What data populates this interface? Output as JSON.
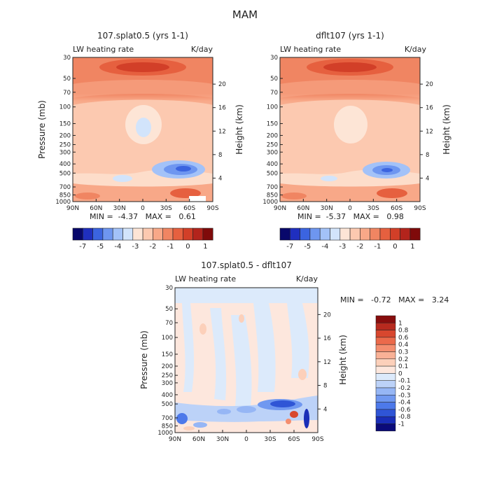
{
  "figure": {
    "title": "MAM"
  },
  "colors": {
    "scale_top": [
      "#08086b",
      "#1f2fbf",
      "#3b64e0",
      "#6e96f0",
      "#a3c2f8",
      "#d2e4fb",
      "#fde5d6",
      "#fcc9b0",
      "#f8a888",
      "#f08562",
      "#e6603f",
      "#d23f28",
      "#b3241c",
      "#7f0a0a"
    ],
    "scale_diff": [
      "#0b0b7a",
      "#1a2eb8",
      "#2f55d6",
      "#4d79ea",
      "#7098f0",
      "#96b6f5",
      "#bcd2f8",
      "#dceafb",
      "#fde7dd",
      "#fcd0ba",
      "#f9b196",
      "#f48e6f",
      "#eb6a4b",
      "#d8472e",
      "#b72a1e",
      "#870d0d"
    ],
    "frame": "#222222"
  },
  "panels": [
    {
      "title": "107.splat0.5 (yrs 1-1)",
      "left_label": "LW heating rate",
      "right_label": "K/day",
      "stats": "MIN =  -4.37   MAX =   0.61"
    },
    {
      "title": "dflt107 (yrs 1-1)",
      "left_label": "LW heating rate",
      "right_label": "K/day",
      "stats": "MIN =  -5.37   MAX =   0.98"
    },
    {
      "title": "107.splat0.5 - dflt107",
      "left_label": "LW heating rate",
      "right_label": "K/day",
      "stats": "MIN =   -0.72   MAX =   3.24"
    }
  ],
  "chart_data": [
    {
      "type": "heatmap",
      "title": "107.splat0.5 (yrs 1-1)",
      "subtitle_left": "LW heating rate",
      "units": "K/day",
      "ylabel": "Pressure (mb)",
      "ylabel_right": "Height (km)",
      "x_ticks": [
        "90N",
        "60N",
        "30N",
        "0",
        "30S",
        "60S",
        "90S"
      ],
      "y_ticks": [
        "30",
        "50",
        "70",
        "100",
        "150",
        "200",
        "250",
        "300",
        "400",
        "500",
        "700",
        "850",
        "1000"
      ],
      "y_ticks_right": [
        "20",
        "16",
        "12",
        "8",
        "4"
      ],
      "colorbar_labels": [
        "-7",
        "-5",
        "-4",
        "-3",
        "-2",
        "-1",
        "0",
        "1"
      ],
      "min": -4.37,
      "max": 0.61
    },
    {
      "type": "heatmap",
      "title": "dflt107 (yrs 1-1)",
      "subtitle_left": "LW heating rate",
      "units": "K/day",
      "ylabel": "Pressure (mb)",
      "ylabel_right": "Height (km)",
      "x_ticks": [
        "90N",
        "60N",
        "30N",
        "0",
        "30S",
        "60S",
        "90S"
      ],
      "y_ticks": [
        "30",
        "50",
        "70",
        "100",
        "150",
        "200",
        "250",
        "300",
        "400",
        "500",
        "700",
        "850",
        "1000"
      ],
      "y_ticks_right": [
        "20",
        "16",
        "12",
        "8",
        "4"
      ],
      "colorbar_labels": [
        "-7",
        "-5",
        "-4",
        "-3",
        "-2",
        "-1",
        "0",
        "1"
      ],
      "min": -5.37,
      "max": 0.98
    },
    {
      "type": "heatmap",
      "title": "107.splat0.5 - dflt107",
      "subtitle_left": "LW heating rate",
      "units": "K/day",
      "ylabel": "Pressure (mb)",
      "ylabel_right": "Height (km)",
      "x_ticks": [
        "90N",
        "60N",
        "30N",
        "0",
        "30S",
        "60S",
        "90S"
      ],
      "y_ticks": [
        "30",
        "50",
        "70",
        "100",
        "150",
        "200",
        "250",
        "300",
        "400",
        "500",
        "700",
        "850",
        "1000"
      ],
      "y_ticks_right": [
        "20",
        "16",
        "12",
        "8",
        "4"
      ],
      "colorbar_labels": [
        "1",
        "0.8",
        "0.6",
        "0.4",
        "0.3",
        "0.2",
        "0.1",
        "0",
        "-0.1",
        "-0.2",
        "-0.3",
        "-0.4",
        "-0.6",
        "-0.8",
        "-1"
      ],
      "min": -0.72,
      "max": 3.24
    }
  ]
}
